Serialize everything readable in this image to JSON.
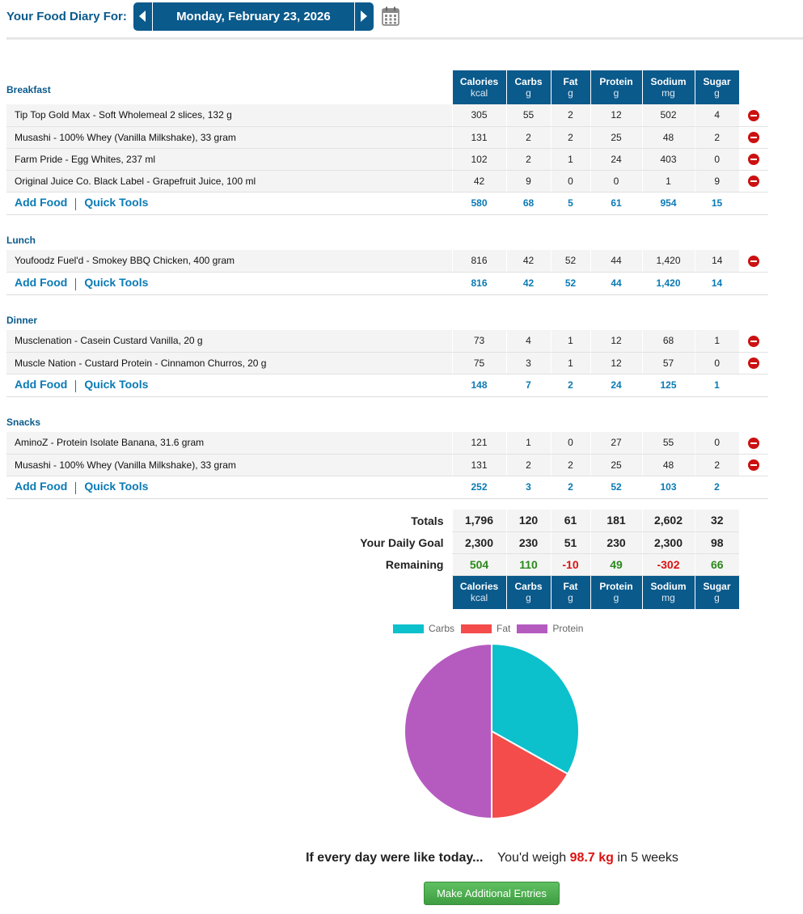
{
  "header": {
    "title": "Your Food Diary For:",
    "date": "Monday, February 23, 2026"
  },
  "columns": [
    {
      "name": "Calories",
      "unit": "kcal"
    },
    {
      "name": "Carbs",
      "unit": "g"
    },
    {
      "name": "Fat",
      "unit": "g"
    },
    {
      "name": "Protein",
      "unit": "g"
    },
    {
      "name": "Sodium",
      "unit": "mg"
    },
    {
      "name": "Sugar",
      "unit": "g"
    }
  ],
  "actions": {
    "add_food": "Add Food",
    "quick_tools": "Quick Tools"
  },
  "meals": [
    {
      "name": "Breakfast",
      "items": [
        {
          "name": "Tip  Top Gold  Max - Soft Wholemeal 2 slices, 132 g",
          "values": [
            "305",
            "55",
            "2",
            "12",
            "502",
            "4"
          ]
        },
        {
          "name": "Musashi - 100% Whey (Vanilla Milkshake), 33 gram",
          "values": [
            "131",
            "2",
            "2",
            "25",
            "48",
            "2"
          ]
        },
        {
          "name": "Farm Pride - Egg Whites, 237 ml",
          "values": [
            "102",
            "2",
            "1",
            "24",
            "403",
            "0"
          ]
        },
        {
          "name": "Original Juice Co. Black Label - Grapefruit Juice, 100 ml",
          "values": [
            "42",
            "9",
            "0",
            "0",
            "1",
            "9"
          ]
        }
      ],
      "totals": [
        "580",
        "68",
        "5",
        "61",
        "954",
        "15"
      ]
    },
    {
      "name": "Lunch",
      "items": [
        {
          "name": "Youfoodz Fuel'd - Smokey BBQ Chicken, 400 gram",
          "values": [
            "816",
            "42",
            "52",
            "44",
            "1,420",
            "14"
          ]
        }
      ],
      "totals": [
        "816",
        "42",
        "52",
        "44",
        "1,420",
        "14"
      ]
    },
    {
      "name": "Dinner",
      "items": [
        {
          "name": "Musclenation - Casein Custard Vanilla, 20 g",
          "values": [
            "73",
            "4",
            "1",
            "12",
            "68",
            "1"
          ]
        },
        {
          "name": "Muscle Nation - Custard Protein - Cinnamon Churros, 20 g",
          "values": [
            "75",
            "3",
            "1",
            "12",
            "57",
            "0"
          ]
        }
      ],
      "totals": [
        "148",
        "7",
        "2",
        "24",
        "125",
        "1"
      ]
    },
    {
      "name": "Snacks",
      "items": [
        {
          "name": "AminoZ - Protein Isolate Banana, 31.6 gram",
          "values": [
            "121",
            "1",
            "0",
            "27",
            "55",
            "0"
          ]
        },
        {
          "name": "Musashi - 100% Whey (Vanilla Milkshake), 33 gram",
          "values": [
            "131",
            "2",
            "2",
            "25",
            "48",
            "2"
          ]
        }
      ],
      "totals": [
        "252",
        "3",
        "2",
        "52",
        "103",
        "2"
      ]
    }
  ],
  "summary": {
    "totals": {
      "label": "Totals",
      "values": [
        "1,796",
        "120",
        "61",
        "181",
        "2,602",
        "32"
      ]
    },
    "goal": {
      "label": "Your Daily Goal",
      "values": [
        "2,300",
        "230",
        "51",
        "230",
        "2,300",
        "98"
      ]
    },
    "remaining": {
      "label": "Remaining",
      "values": [
        "504",
        "110",
        "-10",
        "49",
        "-302",
        "66"
      ],
      "sign": [
        "pos",
        "pos",
        "neg",
        "pos",
        "neg",
        "pos"
      ]
    }
  },
  "chart_data": {
    "type": "pie",
    "categories": [
      "Carbs",
      "Fat",
      "Protein"
    ],
    "values": [
      120,
      61,
      181
    ],
    "colors": [
      "#0cc0cc",
      "#f44b4b",
      "#b55bc0"
    ],
    "legend": "top"
  },
  "projection": {
    "intro": "If every day were like today...",
    "prefix": "You'd weigh",
    "weight": "98.7 kg",
    "suffix": "in 5 weeks"
  },
  "make_entries_button": "Make Additional Entries"
}
